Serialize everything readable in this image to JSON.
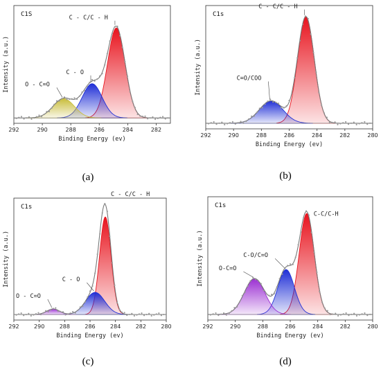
{
  "colors": {
    "red": "#e8141e",
    "blue": "#1f2fd6",
    "yellow": "#c9bd3c",
    "purple": "#9b2fd2",
    "envelope": "#777777",
    "points": "#9a9a9a"
  },
  "chart_data": [
    {
      "type": "line",
      "panel": "a",
      "caption": "(a)",
      "title": "C1S",
      "xlabel": "Binding Energy (ev)",
      "ylabel": "Intensity (a.u.)",
      "xlim": [
        292,
        281
      ],
      "xticks": [
        292,
        290,
        288,
        286,
        284,
        282
      ],
      "baseline": 0.05,
      "ylim": [
        0,
        1.1
      ],
      "peaks": [
        {
          "name": "C-C/C-H",
          "label": "C - C/C - H",
          "center": 284.8,
          "height": 0.84,
          "sigma": 0.62,
          "color": "red"
        },
        {
          "name": "C-O",
          "label": "C - O",
          "center": 286.5,
          "height": 0.32,
          "sigma": 0.7,
          "color": "blue"
        },
        {
          "name": "O-C=O",
          "label": "O - C=O",
          "center": 288.5,
          "height": 0.18,
          "sigma": 0.75,
          "color": "yellow"
        }
      ]
    },
    {
      "type": "line",
      "panel": "b",
      "caption": "(b)",
      "title": "C1s",
      "xlabel": "Binding Energy (ev)",
      "ylabel": "Intensity (a.u.)",
      "xlim": [
        292,
        280
      ],
      "xticks": [
        292,
        290,
        288,
        286,
        284,
        282,
        280
      ],
      "baseline": 0.05,
      "ylim": [
        0,
        1.1
      ],
      "peaks": [
        {
          "name": "C-C/C-H",
          "label": "C - C/C - H",
          "center": 284.8,
          "height": 0.95,
          "sigma": 0.6,
          "color": "red"
        },
        {
          "name": "C=O/COO",
          "label": "C=O/COO",
          "center": 287.3,
          "height": 0.2,
          "sigma": 0.85,
          "color": "blue"
        }
      ]
    },
    {
      "type": "line",
      "panel": "c",
      "caption": "(c)",
      "title": "C1s",
      "xlabel": "Binding Energy (ev)",
      "ylabel": "Intensity (a.u.)",
      "xlim": [
        292,
        280
      ],
      "xticks": [
        292,
        290,
        288,
        286,
        284,
        282,
        280
      ],
      "baseline": 0.05,
      "ylim": [
        0,
        1.1
      ],
      "peaks": [
        {
          "name": "C-C/C-H",
          "label": "C - C/C - H",
          "center": 284.8,
          "height": 0.88,
          "sigma": 0.45,
          "color": "red"
        },
        {
          "name": "C-O",
          "label": "C - O",
          "center": 285.6,
          "height": 0.2,
          "sigma": 0.75,
          "color": "blue"
        },
        {
          "name": "O-C=O",
          "label": "O - C=O",
          "center": 288.9,
          "height": 0.05,
          "sigma": 0.5,
          "color": "purple"
        }
      ]
    },
    {
      "type": "line",
      "panel": "d",
      "caption": "(d)",
      "title": "C1s",
      "xlabel": "Binding Energy (ev)",
      "ylabel": "Intensity (a.u.)",
      "xlim": [
        292,
        280
      ],
      "xticks": [
        292,
        290,
        288,
        286,
        284,
        282,
        280
      ],
      "baseline": 0.05,
      "ylim": [
        0,
        1.1
      ],
      "peaks": [
        {
          "name": "C-C/C-H",
          "label": "C-C/C-H",
          "center": 284.8,
          "height": 0.9,
          "sigma": 0.55,
          "color": "red"
        },
        {
          "name": "C-O/C=O",
          "label": "C-O/C=O",
          "center": 286.3,
          "height": 0.4,
          "sigma": 0.6,
          "color": "blue"
        },
        {
          "name": "O-C=O",
          "label": "O-C=O",
          "center": 288.6,
          "height": 0.32,
          "sigma": 0.75,
          "color": "purple"
        }
      ]
    }
  ]
}
